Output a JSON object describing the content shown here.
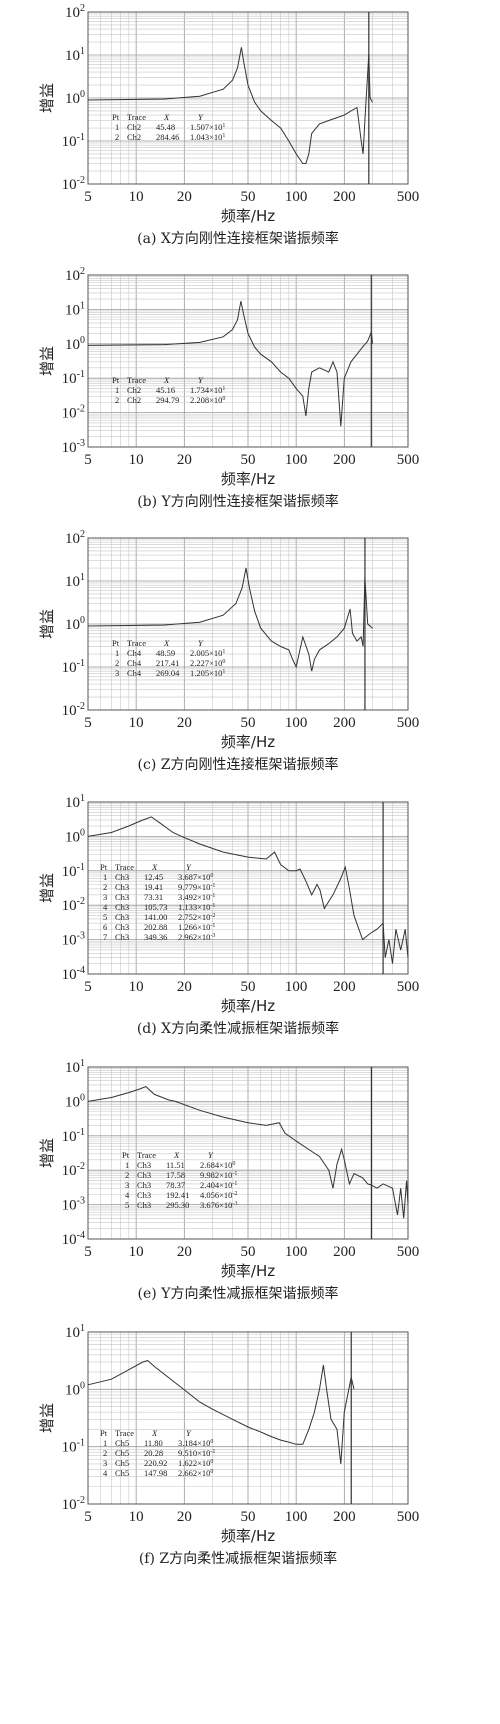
{
  "chart_data": [
    {
      "type": "line",
      "xscale": "log",
      "yscale": "log",
      "xlim": [
        5,
        500
      ],
      "ylim": [
        0.01,
        100
      ],
      "x_ticks": [
        "5",
        "10",
        "20",
        "50",
        "100",
        "200",
        "500"
      ],
      "y_ticks": [
        {
          "base": "10",
          "exp": "2"
        },
        {
          "base": "10",
          "exp": "1"
        },
        {
          "base": "10",
          "exp": "0"
        },
        {
          "base": "10",
          "exp": "-1"
        },
        {
          "base": "10",
          "exp": "-2"
        }
      ],
      "xlabel": "频率/Hz",
      "ylabel": "增益",
      "caption": "(a) X方向刚性连接框架谐振频率",
      "grid": true,
      "marker_x": 284.46,
      "series": [
        {
          "x": [
            5,
            15,
            25,
            35,
            40,
            43,
            45.48,
            47,
            50,
            55,
            60,
            70,
            80,
            90,
            100,
            110,
            115,
            120,
            125,
            140,
            160,
            180,
            200,
            220,
            240,
            255,
            262,
            270,
            284.46,
            290,
            300
          ],
          "y": [
            0.9,
            0.95,
            1.1,
            1.6,
            2.6,
            5,
            15.07,
            7,
            2,
            0.8,
            0.5,
            0.3,
            0.2,
            0.1,
            0.05,
            0.03,
            0.03,
            0.05,
            0.15,
            0.25,
            0.3,
            0.35,
            0.4,
            0.5,
            0.6,
            0.1,
            0.05,
            0.4,
            10.43,
            1,
            0.8
          ]
        }
      ],
      "table": {
        "headers": [
          "Pt",
          "Trace",
          "X",
          "Y"
        ],
        "rows": [
          [
            "1",
            "Ch2",
            "45.48",
            "1.507×10",
            "1"
          ],
          [
            "2",
            "Ch2",
            "284.46",
            "1.043×10",
            "1"
          ]
        ]
      }
    },
    {
      "type": "line",
      "xscale": "log",
      "yscale": "log",
      "xlim": [
        5,
        500
      ],
      "ylim": [
        0.001,
        100
      ],
      "x_ticks": [
        "5",
        "10",
        "20",
        "50",
        "100",
        "200",
        "500"
      ],
      "y_ticks": [
        {
          "base": "10",
          "exp": "2"
        },
        {
          "base": "10",
          "exp": "1"
        },
        {
          "base": "10",
          "exp": "0"
        },
        {
          "base": "10",
          "exp": "-1"
        },
        {
          "base": "10",
          "exp": "-2"
        },
        {
          "base": "10",
          "exp": "-3"
        }
      ],
      "xlabel": "频率/Hz",
      "ylabel": "增益",
      "caption": "(b) Y方向刚性连接框架谐振频率",
      "grid": true,
      "marker_x": 294.79,
      "series": [
        {
          "x": [
            5,
            15,
            25,
            35,
            40,
            43,
            45.16,
            47,
            50,
            55,
            60,
            70,
            80,
            90,
            100,
            110,
            115,
            120,
            125,
            140,
            160,
            170,
            180,
            190,
            200,
            220,
            240,
            260,
            280,
            294.79,
            300
          ],
          "y": [
            0.9,
            0.95,
            1.1,
            1.6,
            2.6,
            5,
            17.34,
            7,
            2,
            0.8,
            0.5,
            0.3,
            0.15,
            0.1,
            0.05,
            0.03,
            0.008,
            0.05,
            0.15,
            0.2,
            0.15,
            0.3,
            0.15,
            0.004,
            0.1,
            0.3,
            0.5,
            0.8,
            1.2,
            2.208,
            1
          ]
        }
      ],
      "table": {
        "headers": [
          "Pt",
          "Trace",
          "X",
          "Y"
        ],
        "rows": [
          [
            "1",
            "Ch2",
            "45.16",
            "1.734×10",
            "1"
          ],
          [
            "2",
            "Ch2",
            "294.79",
            "2.208×10",
            "0"
          ]
        ]
      }
    },
    {
      "type": "line",
      "xscale": "log",
      "yscale": "log",
      "xlim": [
        5,
        500
      ],
      "ylim": [
        0.01,
        100
      ],
      "x_ticks": [
        "5",
        "10",
        "20",
        "50",
        "100",
        "200",
        "500"
      ],
      "y_ticks": [
        {
          "base": "10",
          "exp": "2"
        },
        {
          "base": "10",
          "exp": "1"
        },
        {
          "base": "10",
          "exp": "0"
        },
        {
          "base": "10",
          "exp": "-1"
        },
        {
          "base": "10",
          "exp": "-2"
        }
      ],
      "xlabel": "频率/Hz",
      "ylabel": "增益",
      "caption": "(c) Z方向刚性连接框架谐振频率",
      "grid": true,
      "marker_x": 269.04,
      "series": [
        {
          "x": [
            5,
            15,
            25,
            35,
            42,
            46,
            48.59,
            51,
            55,
            60,
            70,
            80,
            90,
            95,
            100,
            110,
            120,
            125,
            130,
            140,
            160,
            180,
            200,
            217.41,
            225,
            240,
            255,
            262,
            269.04,
            280,
            300
          ],
          "y": [
            0.9,
            0.95,
            1.1,
            1.6,
            3,
            7,
            20.05,
            7,
            2,
            0.8,
            0.4,
            0.3,
            0.25,
            0.15,
            0.1,
            0.5,
            0.2,
            0.08,
            0.15,
            0.25,
            0.35,
            0.5,
            0.8,
            2.227,
            0.6,
            0.4,
            0.5,
            0.3,
            12.05,
            1,
            0.8
          ]
        }
      ],
      "table": {
        "headers": [
          "Pt",
          "Trace",
          "X",
          "Y"
        ],
        "rows": [
          [
            "1",
            "Ch4",
            "48.59",
            "2.005×10",
            "1"
          ],
          [
            "2",
            "Ch4",
            "217.41",
            "2.227×10",
            "0"
          ],
          [
            "3",
            "Ch4",
            "269.04",
            "1.205×10",
            "1"
          ]
        ]
      }
    },
    {
      "type": "line",
      "xscale": "log",
      "yscale": "log",
      "xlim": [
        5,
        500
      ],
      "ylim": [
        0.0001,
        10
      ],
      "x_ticks": [
        "5",
        "10",
        "20",
        "50",
        "100",
        "200",
        "500"
      ],
      "y_ticks": [
        {
          "base": "10",
          "exp": "1"
        },
        {
          "base": "10",
          "exp": "0"
        },
        {
          "base": "10",
          "exp": "-1"
        },
        {
          "base": "10",
          "exp": "-2"
        },
        {
          "base": "10",
          "exp": "-3"
        },
        {
          "base": "10",
          "exp": "-4"
        }
      ],
      "xlabel": "频率/Hz",
      "ylabel": "增益",
      "caption": "(d) X方向柔性减振框架谐振频率",
      "grid": true,
      "marker_x": 349.36,
      "series": [
        {
          "x": [
            5,
            7,
            9,
            11,
            12.45,
            14,
            17,
            19.41,
            25,
            35,
            50,
            65,
            73.31,
            80,
            90,
            100,
            105.73,
            115,
            125,
            135,
            141,
            150,
            170,
            190,
            202.88,
            215,
            230,
            260,
            290,
            320,
            349.36,
            360,
            380,
            400,
            420,
            450,
            480,
            500
          ],
          "y": [
            1,
            1.3,
            2,
            3,
            3.687,
            2.5,
            1.3,
            0.978,
            0.6,
            0.35,
            0.25,
            0.22,
            0.349,
            0.15,
            0.1,
            0.1,
            0.113,
            0.05,
            0.02,
            0.04,
            0.0275,
            0.008,
            0.02,
            0.06,
            0.127,
            0.03,
            0.005,
            0.001,
            0.0015,
            0.002,
            0.003,
            0.0003,
            0.001,
            0.0002,
            0.002,
            0.0005,
            0.002,
            0.0003
          ]
        }
      ],
      "table": {
        "headers": [
          "Pt",
          "Trace",
          "X",
          "Y"
        ],
        "rows": [
          [
            "1",
            "Ch3",
            "12.45",
            "3.687×10",
            "0"
          ],
          [
            "2",
            "Ch3",
            "19.41",
            "9.779×10",
            "-1"
          ],
          [
            "3",
            "Ch3",
            "73.31",
            "3.492×10",
            "-1"
          ],
          [
            "4",
            "Ch3",
            "105.73",
            "1.133×10",
            "-1"
          ],
          [
            "5",
            "Ch3",
            "141.00",
            "2.752×10",
            "-2"
          ],
          [
            "6",
            "Ch3",
            "202.88",
            "1.266×10",
            "-1"
          ],
          [
            "7",
            "Ch3",
            "349.36",
            "2.962×10",
            "-3"
          ]
        ]
      }
    },
    {
      "type": "line",
      "xscale": "log",
      "yscale": "log",
      "xlim": [
        5,
        500
      ],
      "ylim": [
        0.0001,
        10
      ],
      "x_ticks": [
        "5",
        "10",
        "20",
        "50",
        "100",
        "200",
        "500"
      ],
      "y_ticks": [
        {
          "base": "10",
          "exp": "1"
        },
        {
          "base": "10",
          "exp": "0"
        },
        {
          "base": "10",
          "exp": "-1"
        },
        {
          "base": "10",
          "exp": "-2"
        },
        {
          "base": "10",
          "exp": "-3"
        },
        {
          "base": "10",
          "exp": "-4"
        }
      ],
      "xlabel": "频率/Hz",
      "ylabel": "增益",
      "caption": "(e) Y方向柔性减振框架谐振频率",
      "grid": true,
      "marker_x": 295.3,
      "series": [
        {
          "x": [
            5,
            7,
            9,
            10.5,
            11.51,
            13,
            16,
            17.58,
            25,
            35,
            50,
            65,
            78.37,
            85,
            100,
            120,
            140,
            160,
            170,
            180,
            192.41,
            200,
            215,
            230,
            260,
            280,
            295.3,
            320,
            350,
            400,
            430,
            450,
            470,
            490,
            500
          ],
          "y": [
            1,
            1.3,
            1.8,
            2.3,
            2.684,
            1.6,
            1.1,
            0.998,
            0.55,
            0.35,
            0.24,
            0.2,
            0.24,
            0.12,
            0.07,
            0.04,
            0.025,
            0.01,
            0.003,
            0.015,
            0.0406,
            0.02,
            0.004,
            0.008,
            0.006,
            0.004,
            0.0037,
            0.003,
            0.004,
            0.003,
            0.0005,
            0.003,
            0.0004,
            0.005,
            0.001
          ]
        }
      ],
      "table": {
        "headers": [
          "Pt",
          "Trace",
          "X",
          "Y"
        ],
        "rows": [
          [
            "1",
            "Ch3",
            "11.51",
            "2.684×10",
            "0"
          ],
          [
            "2",
            "Ch3",
            "17.58",
            "9.982×10",
            "-1"
          ],
          [
            "3",
            "Ch3",
            "78.37",
            "2.404×10",
            "-1"
          ],
          [
            "4",
            "Ch3",
            "192.41",
            "4.056×10",
            "-2"
          ],
          [
            "5",
            "Ch3",
            "295.30",
            "3.676×10",
            "-3"
          ]
        ]
      }
    },
    {
      "type": "line",
      "xscale": "log",
      "yscale": "log",
      "xlim": [
        5,
        500
      ],
      "ylim": [
        0.01,
        10
      ],
      "x_ticks": [
        "5",
        "10",
        "20",
        "50",
        "100",
        "200",
        "500"
      ],
      "y_ticks": [
        {
          "base": "10",
          "exp": "1"
        },
        {
          "base": "10",
          "exp": "0"
        },
        {
          "base": "10",
          "exp": "-1"
        },
        {
          "base": "10",
          "exp": "-2"
        }
      ],
      "xlabel": "频率/Hz",
      "ylabel": "增益",
      "caption": "(f) Z方向柔性减振框架谐振频率",
      "grid": true,
      "marker_x": 220.92,
      "series": [
        {
          "x": [
            5,
            7,
            9,
            11,
            11.8,
            13,
            17,
            20.28,
            25,
            30,
            40,
            50,
            60,
            70,
            80,
            90,
            100,
            110,
            120,
            130,
            140,
            147.98,
            155,
            165,
            180,
            190,
            200,
            210,
            220.92,
            230
          ],
          "y": [
            1.2,
            1.5,
            2.2,
            3,
            3.184,
            2.5,
            1.4,
            0.951,
            0.6,
            0.45,
            0.3,
            0.22,
            0.18,
            0.15,
            0.13,
            0.12,
            0.11,
            0.11,
            0.2,
            0.4,
            1,
            2.662,
            1,
            0.3,
            0.2,
            0.05,
            0.4,
            0.8,
            1.622,
            1
          ]
        }
      ],
      "table": {
        "headers": [
          "Pt",
          "Trace",
          "X",
          "Y"
        ],
        "rows": [
          [
            "1",
            "Ch5",
            "11.80",
            "3.184×10",
            "0"
          ],
          [
            "2",
            "Ch5",
            "20.28",
            "9.510×10",
            "-1"
          ],
          [
            "3",
            "Ch5",
            "220.92",
            "1.622×10",
            "0"
          ],
          [
            "4",
            "Ch5",
            "147.98",
            "2.662×10",
            "0"
          ]
        ]
      }
    }
  ]
}
